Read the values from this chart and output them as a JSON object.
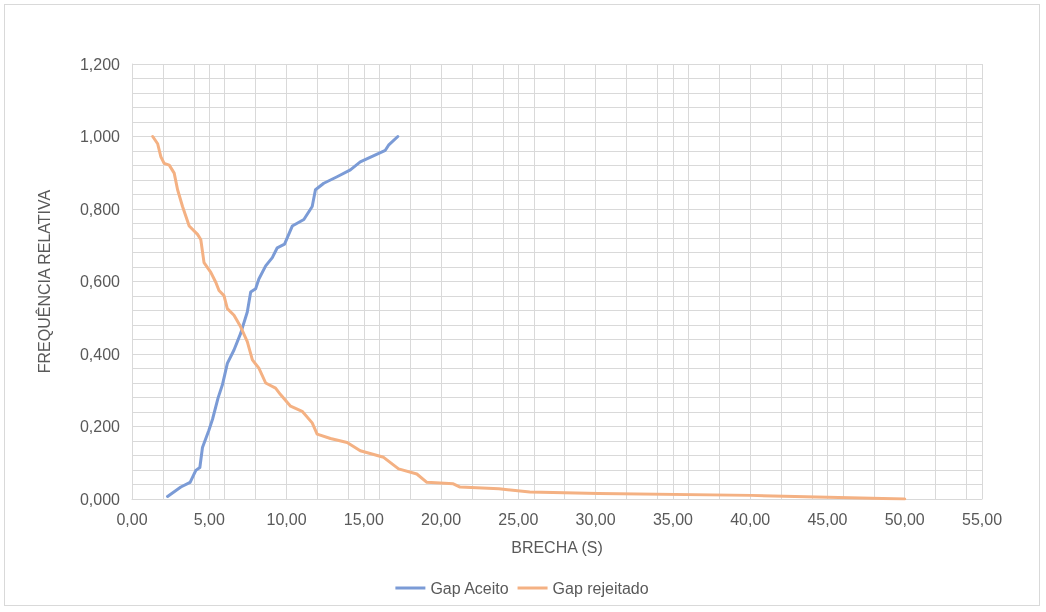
{
  "chart_data": {
    "type": "line",
    "xlabel": "BRECHA (S)",
    "ylabel": "FREQUÊNCIA RELATIVA",
    "xlim": [
      0,
      55
    ],
    "xticks": [
      {
        "value": 0,
        "label": "0,00"
      },
      {
        "value": 5,
        "label": "5,00"
      },
      {
        "value": 10,
        "label": "10,00"
      },
      {
        "value": 15,
        "label": "15,00"
      },
      {
        "value": 20,
        "label": "20,00"
      },
      {
        "value": 25,
        "label": "25,00"
      },
      {
        "value": 30,
        "label": "30,00"
      },
      {
        "value": 35,
        "label": "35,00"
      },
      {
        "value": 40,
        "label": "40,00"
      },
      {
        "value": 45,
        "label": "45,00"
      },
      {
        "value": 50,
        "label": "50,00"
      },
      {
        "value": 55,
        "label": "55,00"
      }
    ],
    "ylim": [
      0,
      1.2
    ],
    "yticks": [
      {
        "value": 0,
        "label": "0,000"
      },
      {
        "value": 0.2,
        "label": "0,200"
      },
      {
        "value": 0.4,
        "label": "0,400"
      },
      {
        "value": 0.6,
        "label": "0,600"
      },
      {
        "value": 0.8,
        "label": "0,800"
      },
      {
        "value": 1,
        "label": "1,000"
      },
      {
        "value": 1.2,
        "label": "1,200"
      }
    ],
    "grid": true,
    "legend": "bottom",
    "marker": "none",
    "line_style": "solid",
    "series": [
      {
        "name": "Gap Aceito",
        "color": "#7b9bd6",
        "x": [
          2.3,
          3.16,
          3.76,
          4.13,
          4.39,
          4.56,
          4.97,
          5.21,
          5.57,
          5.85,
          6.17,
          6.6,
          7.03,
          7.46,
          7.68,
          8.0,
          8.21,
          8.65,
          9.08,
          9.4,
          9.87,
          10.37,
          11.12,
          11.66,
          11.87,
          12.41,
          13.27,
          14.13,
          14.77,
          16.39,
          16.6,
          17.2
        ],
        "values": [
          0.007,
          0.033,
          0.046,
          0.079,
          0.087,
          0.142,
          0.189,
          0.22,
          0.279,
          0.315,
          0.374,
          0.411,
          0.457,
          0.516,
          0.571,
          0.58,
          0.607,
          0.643,
          0.666,
          0.693,
          0.703,
          0.753,
          0.771,
          0.807,
          0.853,
          0.871,
          0.889,
          0.908,
          0.93,
          0.962,
          0.976,
          1.0
        ]
      },
      {
        "name": "Gap rejeitado",
        "color": "#f4b183",
        "x": [
          1.34,
          1.66,
          1.87,
          2.08,
          2.41,
          2.73,
          2.95,
          3.27,
          3.7,
          4.24,
          4.45,
          4.66,
          5.1,
          5.42,
          5.63,
          5.95,
          6.17,
          6.6,
          7.03,
          7.46,
          7.79,
          8.21,
          8.65,
          9.29,
          9.61,
          10.26,
          11.01,
          11.66,
          11.98,
          12.84,
          13.92,
          14.77,
          16.28,
          17.25,
          18.43,
          19.08,
          20.79,
          21.23,
          23.74,
          25.74,
          30.19,
          40.06,
          50.0
        ],
        "values": [
          1.0,
          0.98,
          0.944,
          0.926,
          0.921,
          0.899,
          0.853,
          0.807,
          0.753,
          0.73,
          0.716,
          0.652,
          0.625,
          0.598,
          0.575,
          0.561,
          0.525,
          0.507,
          0.475,
          0.434,
          0.384,
          0.361,
          0.32,
          0.306,
          0.288,
          0.256,
          0.242,
          0.21,
          0.179,
          0.167,
          0.156,
          0.133,
          0.115,
          0.083,
          0.069,
          0.046,
          0.042,
          0.033,
          0.028,
          0.019,
          0.015,
          0.01,
          0.0
        ]
      }
    ]
  }
}
